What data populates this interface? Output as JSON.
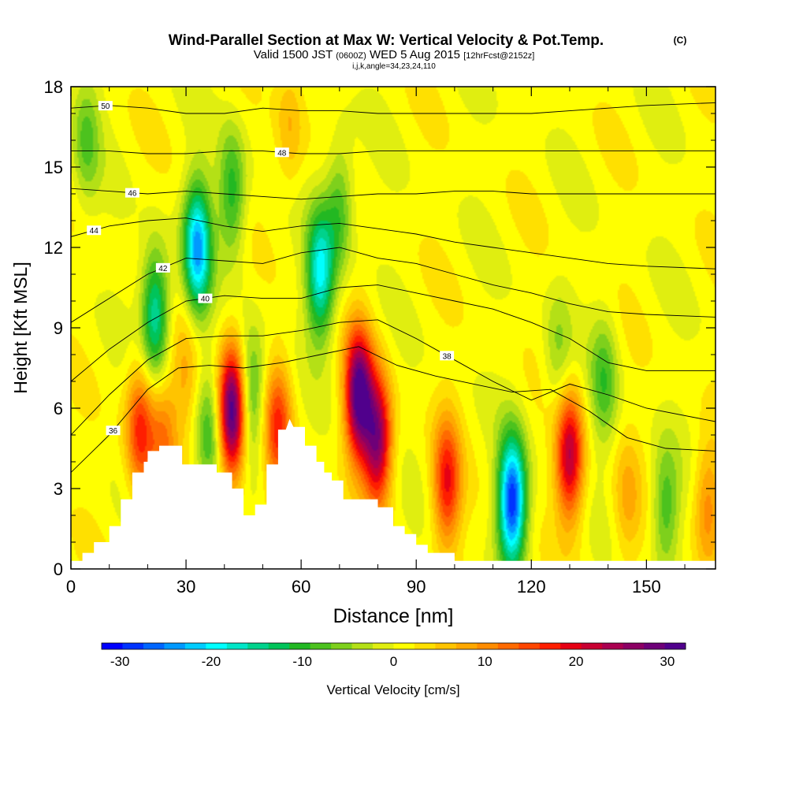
{
  "title": {
    "main": "Wind-Parallel Section at Max W: Vertical Velocity & Pot.Temp.",
    "copyright": "(C)",
    "valid_prefix": "Valid 1500 JST",
    "valid_zulu": "(0600Z)",
    "valid_date": "WED 5 Aug 2015",
    "forecast": "[12hrFcst@2152z]",
    "indices": "i,j,k,angle=34,23,24,110"
  },
  "chart_data": {
    "type": "heatmap",
    "xlabel": "Distance [nm]",
    "ylabel": "Height [Kft MSL]",
    "xlim": [
      0,
      168
    ],
    "ylim": [
      0,
      18
    ],
    "x_ticks": [
      0,
      30,
      60,
      90,
      120,
      150
    ],
    "y_ticks": [
      0,
      3,
      6,
      9,
      12,
      15,
      18
    ],
    "colorbar": {
      "label": "Vertical Velocity [cm/s]",
      "ticks": [
        -30,
        -20,
        -10,
        0,
        10,
        20,
        30
      ],
      "range": [
        -32,
        32
      ],
      "colors": [
        "#0000ff",
        "#0033ff",
        "#0066ff",
        "#0099ff",
        "#00ccff",
        "#00ffff",
        "#00e6c8",
        "#00d28c",
        "#00c45a",
        "#22b822",
        "#4cc21e",
        "#7ed01c",
        "#b4e016",
        "#e0ee10",
        "#ffff00",
        "#ffe000",
        "#ffc400",
        "#ffa800",
        "#ff8c00",
        "#ff6a00",
        "#ff4600",
        "#ff1e00",
        "#e60014",
        "#c80032",
        "#aa0050",
        "#8c0064",
        "#6e0078",
        "#50008c"
      ]
    },
    "updraft_cores": [
      {
        "x": 42,
        "z": 5.8,
        "w": 32
      },
      {
        "x": 75,
        "z": 6.5,
        "w": 30
      },
      {
        "x": 80,
        "z": 4.8,
        "w": 25
      },
      {
        "x": 130,
        "z": 4.2,
        "w": 22
      },
      {
        "x": 98,
        "z": 3.2,
        "w": 17
      },
      {
        "x": 18,
        "z": 5.2,
        "w": 16
      },
      {
        "x": 54,
        "z": 5.3,
        "w": 15
      },
      {
        "x": 24,
        "z": 4.8,
        "w": 10
      },
      {
        "x": 166,
        "z": 2.3,
        "w": 10
      },
      {
        "x": 57,
        "z": 16.5,
        "w": 6
      },
      {
        "x": 30,
        "z": 7.2,
        "w": 6
      },
      {
        "x": 145,
        "z": 2.5,
        "w": 6
      }
    ],
    "downdraft_cores": [
      {
        "x": 33,
        "z": 12.0,
        "w": -24
      },
      {
        "x": 22,
        "z": 9.5,
        "w": -18
      },
      {
        "x": 65,
        "z": 11.0,
        "w": -20
      },
      {
        "x": 115,
        "z": 2.5,
        "w": -30
      },
      {
        "x": 47,
        "z": 6.5,
        "w": -12
      },
      {
        "x": 36,
        "z": 5.0,
        "w": -9
      },
      {
        "x": 155,
        "z": 2.2,
        "w": -10
      },
      {
        "x": 4,
        "z": 16,
        "w": -8
      },
      {
        "x": 139,
        "z": 7.0,
        "w": -9
      },
      {
        "x": 70,
        "z": 13.5,
        "w": -10
      },
      {
        "x": 42,
        "z": 14.0,
        "w": -12
      },
      {
        "x": 127,
        "z": 8.0,
        "w": -6
      }
    ],
    "theta_contours": [
      {
        "level": 36,
        "label_x": 11,
        "points": [
          [
            0,
            3.6
          ],
          [
            10,
            5.0
          ],
          [
            20,
            6.7
          ],
          [
            28,
            7.5
          ],
          [
            36,
            7.6
          ],
          [
            45,
            7.5
          ],
          [
            55,
            7.7
          ],
          [
            65,
            8.0
          ],
          [
            75,
            8.3
          ],
          [
            85,
            7.6
          ],
          [
            95,
            7.2
          ],
          [
            105,
            6.9
          ],
          [
            115,
            6.6
          ],
          [
            125,
            6.7
          ],
          [
            135,
            5.9
          ],
          [
            145,
            4.9
          ],
          [
            155,
            4.5
          ],
          [
            168,
            4.4
          ]
        ]
      },
      {
        "level": 38,
        "label_x": 98,
        "points": [
          [
            0,
            5.0
          ],
          [
            10,
            6.5
          ],
          [
            20,
            7.8
          ],
          [
            30,
            8.6
          ],
          [
            40,
            8.7
          ],
          [
            50,
            8.7
          ],
          [
            60,
            8.9
          ],
          [
            70,
            9.2
          ],
          [
            80,
            9.3
          ],
          [
            90,
            8.6
          ],
          [
            100,
            7.8
          ],
          [
            110,
            7.0
          ],
          [
            120,
            6.3
          ],
          [
            130,
            6.9
          ],
          [
            140,
            6.5
          ],
          [
            150,
            6.0
          ],
          [
            168,
            5.5
          ]
        ]
      },
      {
        "level": 40,
        "label_x": 35,
        "points": [
          [
            0,
            7.0
          ],
          [
            10,
            8.2
          ],
          [
            20,
            9.2
          ],
          [
            30,
            10.0
          ],
          [
            40,
            10.2
          ],
          [
            50,
            10.1
          ],
          [
            60,
            10.1
          ],
          [
            70,
            10.5
          ],
          [
            80,
            10.6
          ],
          [
            90,
            10.3
          ],
          [
            100,
            10.0
          ],
          [
            110,
            9.7
          ],
          [
            120,
            9.2
          ],
          [
            130,
            8.6
          ],
          [
            140,
            7.7
          ],
          [
            150,
            7.4
          ],
          [
            168,
            7.4
          ]
        ]
      },
      {
        "level": 42,
        "label_x": 24,
        "points": [
          [
            0,
            9.2
          ],
          [
            10,
            10.1
          ],
          [
            20,
            11.0
          ],
          [
            30,
            11.6
          ],
          [
            40,
            11.5
          ],
          [
            50,
            11.4
          ],
          [
            60,
            11.8
          ],
          [
            70,
            12.0
          ],
          [
            80,
            11.6
          ],
          [
            90,
            11.4
          ],
          [
            100,
            11.0
          ],
          [
            110,
            10.6
          ],
          [
            120,
            10.3
          ],
          [
            130,
            9.9
          ],
          [
            140,
            9.6
          ],
          [
            150,
            9.5
          ],
          [
            168,
            9.4
          ]
        ]
      },
      {
        "level": 44,
        "label_x": 6,
        "points": [
          [
            0,
            12.4
          ],
          [
            10,
            12.8
          ],
          [
            20,
            13.0
          ],
          [
            30,
            13.1
          ],
          [
            40,
            12.8
          ],
          [
            50,
            12.6
          ],
          [
            60,
            12.8
          ],
          [
            70,
            12.9
          ],
          [
            80,
            12.7
          ],
          [
            90,
            12.5
          ],
          [
            100,
            12.2
          ],
          [
            110,
            12.0
          ],
          [
            120,
            11.8
          ],
          [
            130,
            11.6
          ],
          [
            140,
            11.4
          ],
          [
            150,
            11.3
          ],
          [
            168,
            11.2
          ]
        ]
      },
      {
        "level": 46,
        "label_x": 16,
        "points": [
          [
            0,
            14.2
          ],
          [
            10,
            14.1
          ],
          [
            20,
            14.0
          ],
          [
            30,
            14.1
          ],
          [
            40,
            14.0
          ],
          [
            50,
            13.9
          ],
          [
            60,
            13.8
          ],
          [
            70,
            13.9
          ],
          [
            80,
            14.0
          ],
          [
            90,
            14.0
          ],
          [
            100,
            14.1
          ],
          [
            110,
            14.1
          ],
          [
            120,
            14.0
          ],
          [
            130,
            14.0
          ],
          [
            140,
            14.0
          ],
          [
            150,
            14.0
          ],
          [
            168,
            14.0
          ]
        ]
      },
      {
        "level": 48,
        "label_x": 55,
        "points": [
          [
            0,
            15.6
          ],
          [
            10,
            15.6
          ],
          [
            20,
            15.5
          ],
          [
            30,
            15.5
          ],
          [
            40,
            15.6
          ],
          [
            50,
            15.6
          ],
          [
            60,
            15.5
          ],
          [
            70,
            15.5
          ],
          [
            80,
            15.6
          ],
          [
            90,
            15.6
          ],
          [
            100,
            15.6
          ],
          [
            110,
            15.6
          ],
          [
            120,
            15.6
          ],
          [
            130,
            15.6
          ],
          [
            140,
            15.6
          ],
          [
            150,
            15.6
          ],
          [
            168,
            15.6
          ]
        ]
      },
      {
        "level": 50,
        "label_x": 9,
        "points": [
          [
            0,
            17.2
          ],
          [
            10,
            17.3
          ],
          [
            20,
            17.2
          ],
          [
            30,
            17.0
          ],
          [
            40,
            17.0
          ],
          [
            50,
            17.2
          ],
          [
            60,
            17.1
          ],
          [
            70,
            17.1
          ],
          [
            80,
            17.0
          ],
          [
            90,
            17.0
          ],
          [
            100,
            17.0
          ],
          [
            110,
            17.0
          ],
          [
            120,
            17.0
          ],
          [
            130,
            17.1
          ],
          [
            140,
            17.2
          ],
          [
            150,
            17.3
          ],
          [
            168,
            17.4
          ]
        ]
      }
    ],
    "terrain_profile": [
      [
        0,
        0.3
      ],
      [
        3,
        0.3
      ],
      [
        3,
        0.6
      ],
      [
        6,
        0.6
      ],
      [
        6,
        1.0
      ],
      [
        10,
        1.0
      ],
      [
        10,
        1.6
      ],
      [
        13,
        1.6
      ],
      [
        13,
        2.6
      ],
      [
        16,
        2.6
      ],
      [
        16,
        3.6
      ],
      [
        19,
        3.6
      ],
      [
        19,
        4.0
      ],
      [
        20,
        4.0
      ],
      [
        20,
        4.4
      ],
      [
        23,
        4.4
      ],
      [
        23,
        4.6
      ],
      [
        29,
        4.6
      ],
      [
        29,
        3.9
      ],
      [
        38,
        3.9
      ],
      [
        38,
        3.6
      ],
      [
        42,
        3.6
      ],
      [
        42,
        3.0
      ],
      [
        45,
        3.0
      ],
      [
        45,
        2.0
      ],
      [
        48,
        2.0
      ],
      [
        48,
        2.4
      ],
      [
        51,
        2.4
      ],
      [
        51,
        3.9
      ],
      [
        54,
        3.9
      ],
      [
        54,
        5.2
      ],
      [
        56,
        5.2
      ],
      [
        57,
        5.6
      ],
      [
        58,
        5.3
      ],
      [
        61,
        5.3
      ],
      [
        61,
        4.6
      ],
      [
        64,
        4.6
      ],
      [
        64,
        4.0
      ],
      [
        66,
        4.0
      ],
      [
        66,
        3.6
      ],
      [
        68,
        3.6
      ],
      [
        68,
        3.3
      ],
      [
        71,
        3.3
      ],
      [
        71,
        2.6
      ],
      [
        80,
        2.6
      ],
      [
        80,
        2.3
      ],
      [
        84,
        2.3
      ],
      [
        84,
        1.6
      ],
      [
        87,
        1.6
      ],
      [
        87,
        1.3
      ],
      [
        90,
        1.3
      ],
      [
        90,
        0.9
      ],
      [
        93,
        0.9
      ],
      [
        93,
        0.6
      ],
      [
        100,
        0.6
      ],
      [
        100,
        0.3
      ],
      [
        168,
        0.3
      ]
    ]
  }
}
